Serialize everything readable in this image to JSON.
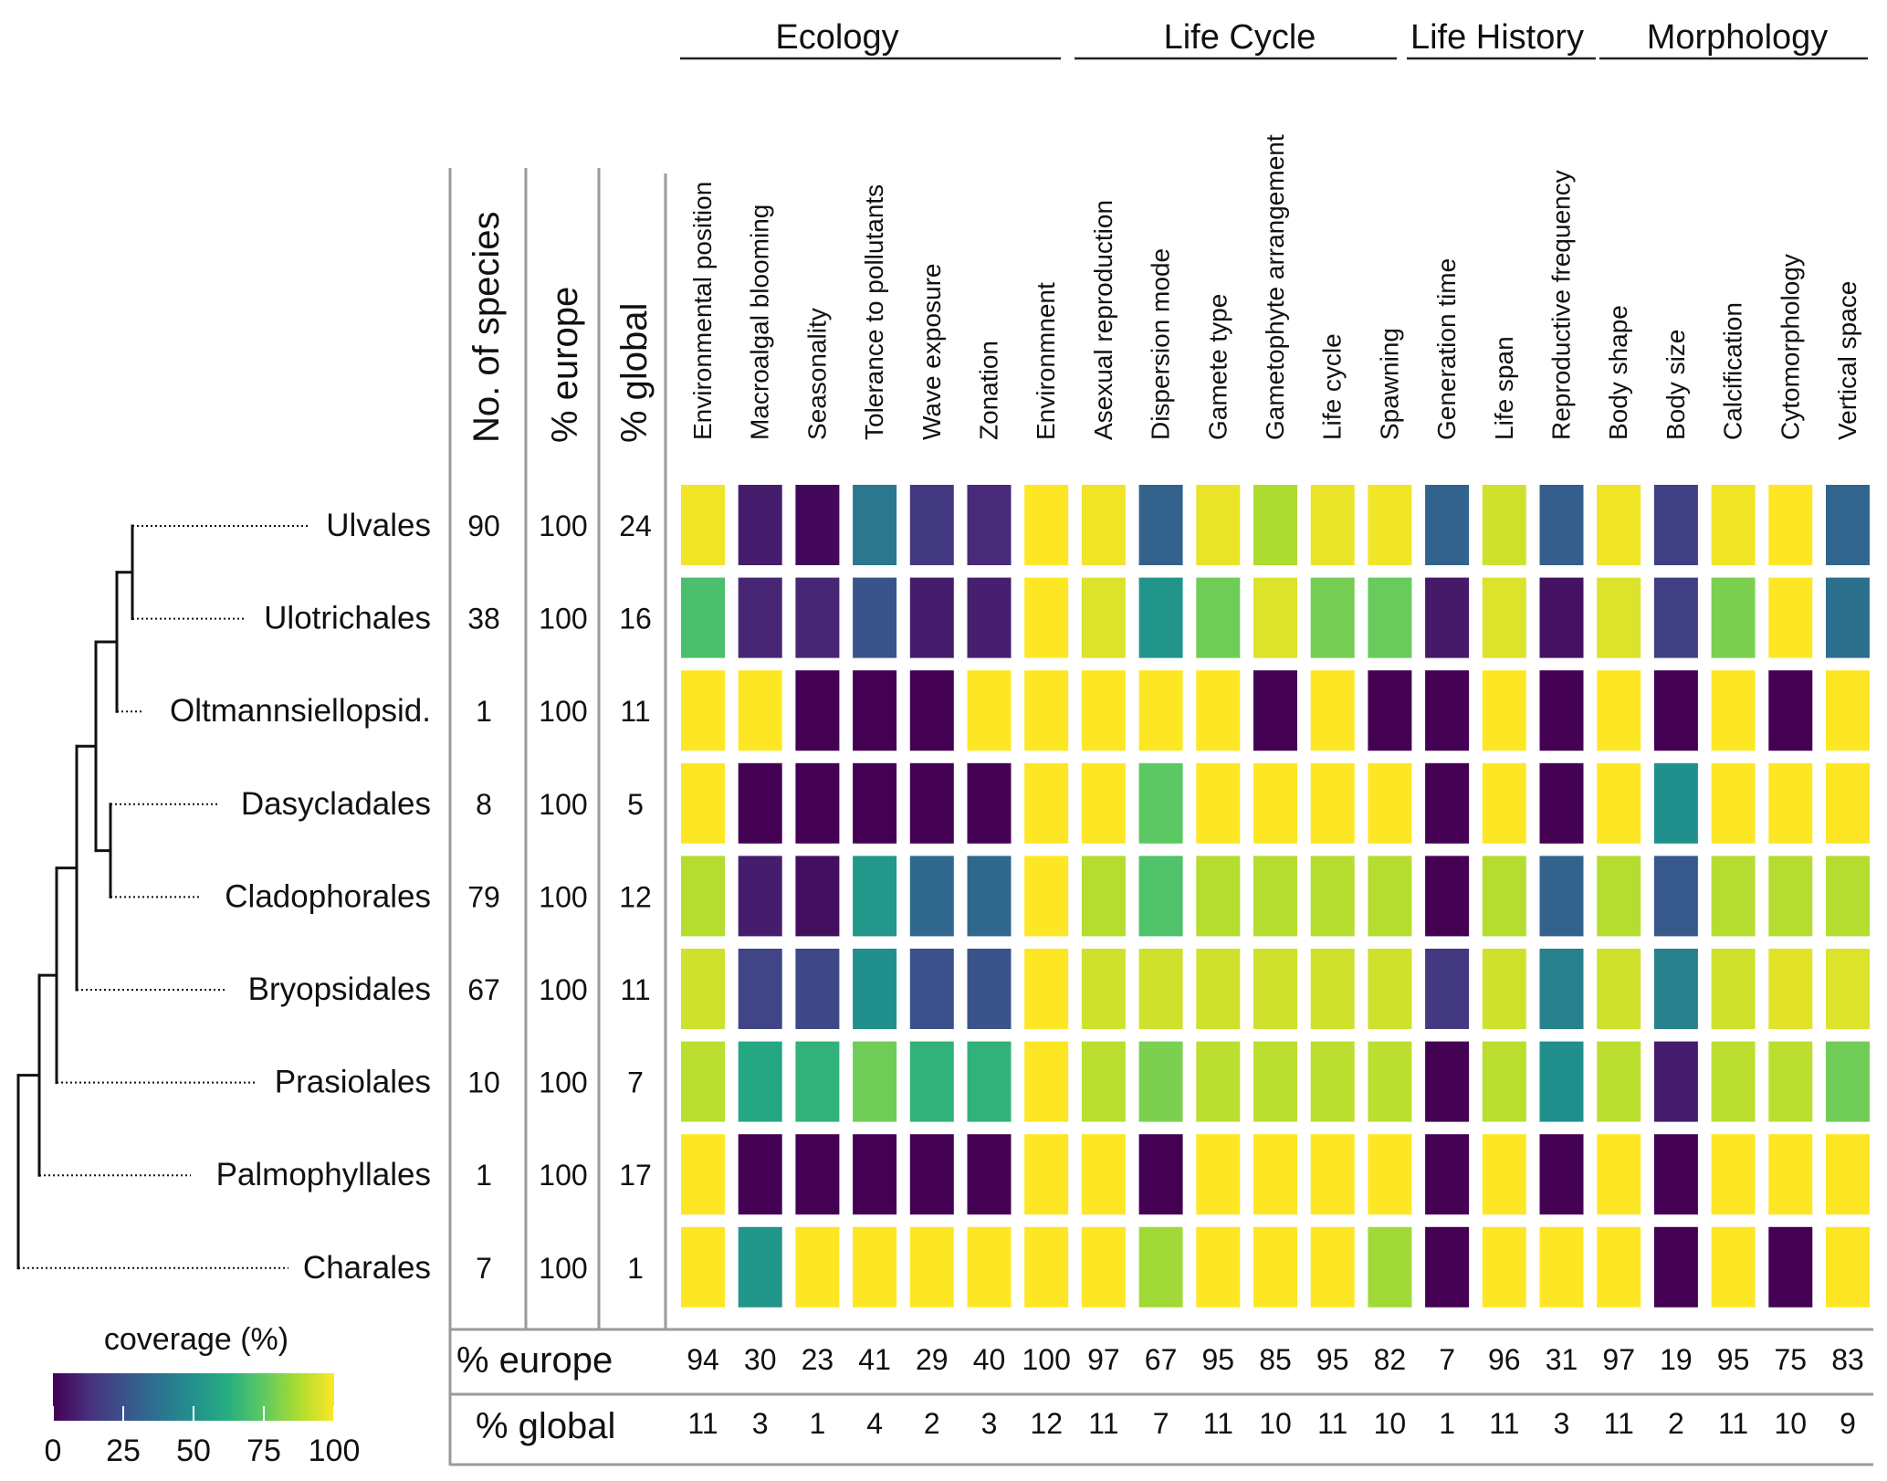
{
  "chart_data": {
    "type": "heatmap",
    "title": "",
    "legend": {
      "title": "coverage (%)",
      "ticks": [
        "0",
        "25",
        "50",
        "75",
        "100"
      ],
      "tick_values": [
        0,
        25,
        50,
        75,
        100
      ],
      "position": "bottom-left"
    },
    "groups": [
      {
        "name": "Ecology",
        "traits": [
          0,
          6
        ]
      },
      {
        "name": "Life Cycle",
        "traits": [
          7,
          12
        ]
      },
      {
        "name": "Life History",
        "traits": [
          13,
          15
        ]
      },
      {
        "name": "Morphology",
        "traits": [
          16,
          20
        ]
      }
    ],
    "traits": [
      "Environmental position",
      "Macroalgal blooming",
      "Seasonality",
      "Tolerance to pollutants",
      "Wave exposure",
      "Zonation",
      "Environmnent",
      "Asexual reproduction",
      "Dispersion mode",
      "Gamete type",
      "Gametophyte arrangement",
      "Life cycle",
      "Spawning",
      "Generation time",
      "Life span",
      "Reproductive frequency",
      "Body shape",
      "Body size",
      "Calcification",
      "Cytomorphology",
      "Vertical space"
    ],
    "row_stat_headers": [
      "No. of species",
      "% europe",
      "% global"
    ],
    "orders": [
      {
        "name": "Ulvales",
        "species": "90",
        "europe": "100",
        "global": "24",
        "values": [
          98,
          8,
          2,
          40,
          17,
          12,
          100,
          98,
          32,
          97,
          88,
          97,
          98,
          32,
          93,
          30,
          98,
          19,
          98,
          100,
          33
        ]
      },
      {
        "name": "Ulotrichales",
        "species": "38",
        "europe": "100",
        "global": "16",
        "values": [
          71,
          11,
          11,
          26,
          8,
          9,
          100,
          95,
          52,
          78,
          95,
          79,
          77,
          7,
          95,
          5,
          95,
          19,
          80,
          100,
          37
        ]
      },
      {
        "name": "Oltmannsiellopsid.",
        "species": "1",
        "europe": "100",
        "global": "11",
        "values": [
          100,
          100,
          0,
          0,
          0,
          100,
          100,
          100,
          100,
          100,
          0,
          100,
          0,
          0,
          100,
          0,
          100,
          0,
          100,
          0,
          100
        ]
      },
      {
        "name": "Dasycladales",
        "species": "8",
        "europe": "100",
        "global": "5",
        "values": [
          100,
          0,
          0,
          0,
          0,
          0,
          100,
          100,
          75,
          100,
          100,
          100,
          100,
          0,
          100,
          0,
          100,
          50,
          100,
          100,
          100
        ]
      },
      {
        "name": "Cladophorales",
        "species": "79",
        "europe": "100",
        "global": "12",
        "values": [
          89,
          8,
          4,
          53,
          34,
          34,
          100,
          89,
          72,
          89,
          89,
          89,
          89,
          0,
          89,
          32,
          89,
          28,
          89,
          89,
          89
        ]
      },
      {
        "name": "Bryopsidales",
        "species": "67",
        "europe": "100",
        "global": "11",
        "values": [
          93,
          21,
          22,
          50,
          25,
          26,
          100,
          93,
          93,
          93,
          93,
          93,
          93,
          17,
          93,
          44,
          93,
          44,
          93,
          96,
          95
        ]
      },
      {
        "name": "Prasiolales",
        "species": "10",
        "europe": "100",
        "global": "7",
        "values": [
          90,
          60,
          65,
          78,
          65,
          65,
          100,
          90,
          80,
          90,
          90,
          90,
          90,
          0,
          90,
          50,
          90,
          8,
          90,
          90,
          78
        ]
      },
      {
        "name": "Palmophyllales",
        "species": "1",
        "europe": "100",
        "global": "17",
        "values": [
          100,
          0,
          0,
          0,
          0,
          0,
          100,
          100,
          0,
          100,
          100,
          100,
          100,
          0,
          100,
          0,
          100,
          0,
          100,
          100,
          100
        ]
      },
      {
        "name": "Charales",
        "species": "7",
        "europe": "100",
        "global": "1",
        "values": [
          100,
          52,
          100,
          100,
          100,
          100,
          100,
          100,
          86,
          100,
          100,
          100,
          86,
          0,
          100,
          100,
          100,
          0,
          100,
          0,
          100
        ]
      }
    ],
    "summary_labels": [
      "% europe",
      "% global"
    ],
    "summary_europe": [
      "94",
      "30",
      "23",
      "41",
      "29",
      "40",
      "100",
      "97",
      "67",
      "95",
      "85",
      "95",
      "82",
      "7",
      "96",
      "31",
      "97",
      "19",
      "95",
      "75",
      "83"
    ],
    "summary_global": [
      "11",
      "3",
      "1",
      "4",
      "2",
      "3",
      "12",
      "11",
      "7",
      "11",
      "10",
      "11",
      "10",
      "1",
      "11",
      "3",
      "11",
      "2",
      "11",
      "10",
      "9"
    ]
  }
}
